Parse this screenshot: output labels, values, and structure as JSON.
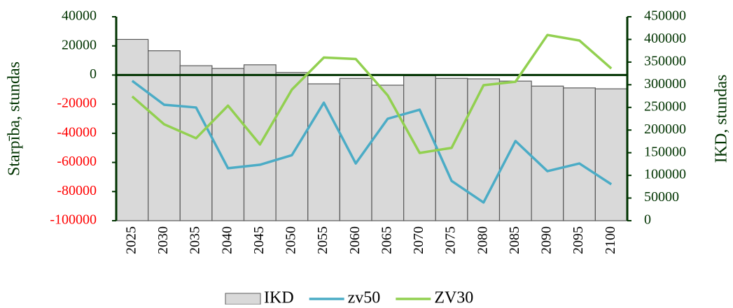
{
  "chart_data": {
    "type": "bar_line",
    "categories": [
      "2025",
      "2030",
      "2035",
      "2040",
      "2045",
      "2050",
      "2055",
      "2060",
      "2065",
      "2070",
      "2075",
      "2080",
      "2085",
      "2090",
      "2095",
      "2100"
    ],
    "series": [
      {
        "name": "IKD",
        "type": "bar",
        "axis": "y2",
        "color": "#d9d9d9",
        "values": [
          400000,
          375000,
          342000,
          336000,
          344000,
          327000,
          302000,
          314000,
          299000,
          320000,
          314000,
          313000,
          308000,
          297000,
          293000,
          291000
        ]
      },
      {
        "name": "zv50",
        "type": "line",
        "axis": "y",
        "color": "#4bacc6",
        "values": [
          -4000,
          -20400,
          -22300,
          -64000,
          -61600,
          -55000,
          -19000,
          -60700,
          -30000,
          -23800,
          -72700,
          -87500,
          -45300,
          -66000,
          -60700,
          -75000
        ]
      },
      {
        "name": "ZV30",
        "type": "line",
        "axis": "y",
        "color": "#92d050",
        "values": [
          -14700,
          -33800,
          -43400,
          -21000,
          -47700,
          -10000,
          12000,
          11000,
          -14000,
          -53500,
          -50000,
          -7000,
          -4600,
          27500,
          23700,
          4500
        ]
      }
    ],
    "ylabel": "Starpība, stundas",
    "y2label": "IKD, stundas",
    "ylim": [
      -100000,
      40000
    ],
    "yticks": [
      -100000,
      -80000,
      -60000,
      -40000,
      -20000,
      0,
      20000,
      40000
    ],
    "y2lim": [
      0,
      450000
    ],
    "y2ticks": [
      0,
      50000,
      100000,
      150000,
      200000,
      250000,
      300000,
      350000,
      400000,
      450000
    ],
    "axis_color": "#003300",
    "negative_tick_color": "#ff0000",
    "legend": "bottom"
  }
}
